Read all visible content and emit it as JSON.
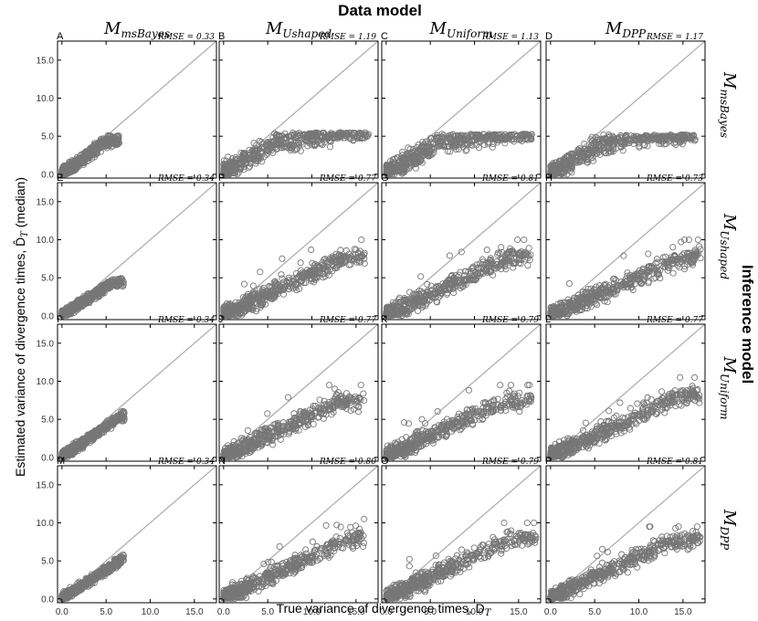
{
  "figure": {
    "top_title": "Data model",
    "right_title": "Inference model",
    "xlabel": "True variance of divergence times, D",
    "xlabel_sub": "T",
    "ylabel": "Estimated variance of divergence times, D̂",
    "ylabel_sub": "T",
    "ylabel_suffix": " (median)",
    "column_headers": [
      {
        "base": "M",
        "sub": "msBayes"
      },
      {
        "base": "M",
        "sub": "Ushaped"
      },
      {
        "base": "M",
        "sub": "Uniform"
      },
      {
        "base": "M",
        "sub": "DPP"
      }
    ],
    "row_headers": [
      {
        "base": "M",
        "sub": "msBayes"
      },
      {
        "base": "M",
        "sub": "Ushaped"
      },
      {
        "base": "M",
        "sub": "Uniform"
      },
      {
        "base": "M",
        "sub": "DPP"
      }
    ],
    "colors": {
      "points": "#777777",
      "line": "#aaaaaa",
      "axes": "#000000"
    }
  },
  "chart_data": {
    "type": "scatter",
    "xlim": [
      -0.5,
      17.5
    ],
    "ylim": [
      -0.5,
      17.5
    ],
    "xticks": [
      "0.0",
      "5.0",
      "10.0",
      "15.0"
    ],
    "yticks": [
      "0.0",
      "5.0",
      "10.0",
      "15.0"
    ],
    "tick_values": [
      0,
      5,
      10,
      15
    ],
    "reference_line": "y = x",
    "grid": false,
    "marker": "open circle",
    "panels": [
      {
        "label": "A",
        "rmse_label": "RMSE = 0.33",
        "rmse": 0.33,
        "x_max": 6.5,
        "y_cap": 5.5,
        "slope": 0.85,
        "spread": 0.5,
        "scatter": 0.6,
        "outliers": 0
      },
      {
        "label": "B",
        "rmse_label": "RMSE = 1.19",
        "rmse": 1.19,
        "x_max": 16.5,
        "y_cap": 5.5,
        "slope": 0.7,
        "spread": 1.0,
        "scatter": 0.8,
        "outliers": 0
      },
      {
        "label": "C",
        "rmse_label": "RMSE = 1.13",
        "rmse": 1.13,
        "x_max": 16.5,
        "y_cap": 5.3,
        "slope": 0.7,
        "spread": 1.0,
        "scatter": 0.8,
        "outliers": 0
      },
      {
        "label": "D",
        "rmse_label": "RMSE = 1.17",
        "rmse": 1.17,
        "x_max": 16.5,
        "y_cap": 5.2,
        "slope": 0.7,
        "spread": 1.0,
        "scatter": 0.8,
        "outliers": 0
      },
      {
        "label": "E",
        "rmse_label": "RMSE = 0.34",
        "rmse": 0.34,
        "x_max": 7.0,
        "y_cap": 5.5,
        "slope": 0.75,
        "spread": 0.4,
        "scatter": 0.6,
        "outliers": 0
      },
      {
        "label": "F",
        "rmse_label": "RMSE = 0.77",
        "rmse": 0.77,
        "x_max": 16.0,
        "y_cap": 10.0,
        "slope": 0.55,
        "spread": 0.8,
        "scatter": 0.8,
        "outliers": 8
      },
      {
        "label": "G",
        "rmse_label": "RMSE = 0.81",
        "rmse": 0.81,
        "x_max": 16.5,
        "y_cap": 10.0,
        "slope": 0.55,
        "spread": 0.8,
        "scatter": 0.8,
        "outliers": 10
      },
      {
        "label": "H",
        "rmse_label": "RMSE = 0.73",
        "rmse": 0.73,
        "x_max": 17.0,
        "y_cap": 10.0,
        "slope": 0.5,
        "spread": 0.8,
        "scatter": 0.8,
        "outliers": 8
      },
      {
        "label": "I",
        "rmse_label": "RMSE = 0.34",
        "rmse": 0.34,
        "x_max": 7.2,
        "y_cap": 7.0,
        "slope": 0.8,
        "spread": 0.4,
        "scatter": 0.6,
        "outliers": 0
      },
      {
        "label": "J",
        "rmse_label": "RMSE = 0.77",
        "rmse": 0.77,
        "x_max": 16.0,
        "y_cap": 9.5,
        "slope": 0.55,
        "spread": 0.8,
        "scatter": 0.8,
        "outliers": 6
      },
      {
        "label": "K",
        "rmse_label": "RMSE = 0.79",
        "rmse": 0.79,
        "x_max": 16.5,
        "y_cap": 9.5,
        "slope": 0.55,
        "spread": 0.8,
        "scatter": 0.8,
        "outliers": 10
      },
      {
        "label": "L",
        "rmse_label": "RMSE = 0.77",
        "rmse": 0.77,
        "x_max": 17.0,
        "y_cap": 10.5,
        "slope": 0.55,
        "spread": 0.8,
        "scatter": 0.8,
        "outliers": 8
      },
      {
        "label": "M",
        "rmse_label": "RMSE = 0.34",
        "rmse": 0.34,
        "x_max": 7.0,
        "y_cap": 7.0,
        "slope": 0.75,
        "spread": 0.4,
        "scatter": 0.6,
        "outliers": 0
      },
      {
        "label": "N",
        "rmse_label": "RMSE = 0.80",
        "rmse": 0.8,
        "x_max": 16.0,
        "y_cap": 10.5,
        "slope": 0.55,
        "spread": 0.8,
        "scatter": 0.8,
        "outliers": 10
      },
      {
        "label": "O",
        "rmse_label": "RMSE = 0.79",
        "rmse": 0.79,
        "x_max": 17.0,
        "y_cap": 10.0,
        "slope": 0.55,
        "spread": 0.8,
        "scatter": 0.8,
        "outliers": 10
      },
      {
        "label": "P",
        "rmse_label": "RMSE = 0.81",
        "rmse": 0.81,
        "x_max": 17.0,
        "y_cap": 9.5,
        "slope": 0.55,
        "spread": 0.8,
        "scatter": 0.8,
        "outliers": 10
      }
    ]
  }
}
